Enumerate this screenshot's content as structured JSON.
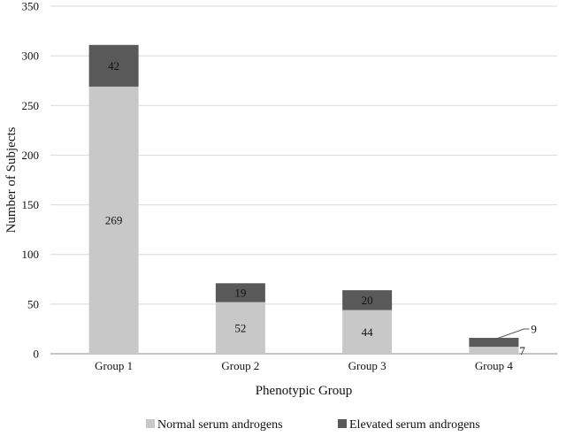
{
  "chart_data": {
    "type": "bar",
    "stacked": true,
    "title": "",
    "xlabel": "Phenotypic Group",
    "ylabel": "Number of Subjects",
    "categories": [
      "Group 1",
      "Group 2",
      "Group 3",
      "Group 4"
    ],
    "series": [
      {
        "name": "Normal serum androgens",
        "values": [
          269,
          52,
          44,
          7
        ],
        "color": "#c8c8c8"
      },
      {
        "name": "Elevated serum androgens",
        "values": [
          42,
          19,
          20,
          9
        ],
        "color": "#595959"
      }
    ],
    "ylim": [
      0,
      350
    ],
    "yticks": [
      0,
      50,
      100,
      150,
      200,
      250,
      300,
      350
    ],
    "grid": "horizontal",
    "legend": "bottom"
  }
}
